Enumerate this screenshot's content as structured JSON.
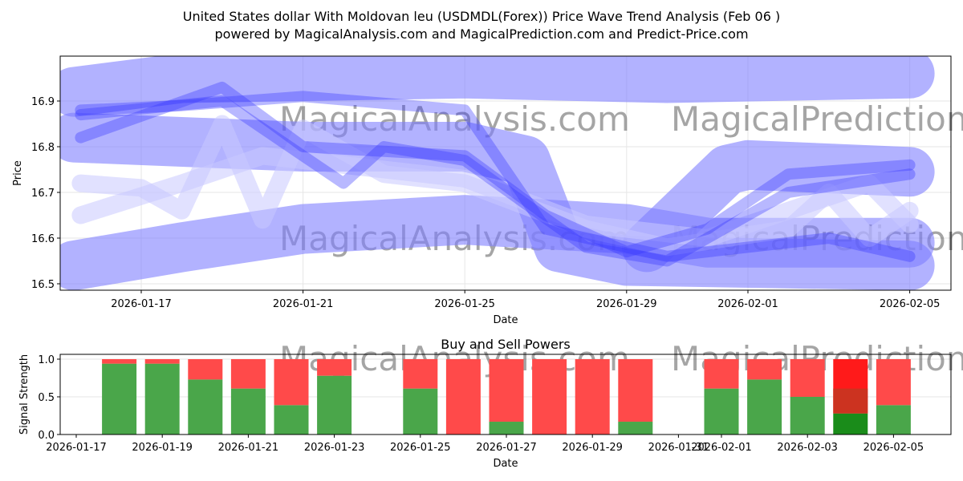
{
  "title_line1": "United States dollar With Moldovan leu (USDMDL(Forex)) Price Wave Trend Analysis (Feb 06 )",
  "title_line2": "powered by MagicalAnalysis.com and MagicalPrediction.com and Predict-Price.com",
  "watermarks": [
    "MagicalAnalysis.com",
    "MagicalPrediction.com"
  ],
  "chart_data": [
    {
      "type": "line",
      "title": "",
      "xlabel": "Date",
      "ylabel": "Price",
      "ylim": [
        16.485,
        16.995
      ],
      "xticks": [
        "2026-01-17",
        "2026-01-21",
        "2026-01-25",
        "2026-01-29",
        "2026-02-01",
        "2026-02-05"
      ],
      "yticks": [
        "16.5",
        "16.6",
        "16.7",
        "16.8",
        "16.9"
      ],
      "grid": true,
      "colors": {
        "band": "#7f7fff",
        "line": "#3333ff"
      },
      "series": [
        {
          "name": "band-top",
          "kind": "band",
          "points": [
            [
              "2026-01-15T08:00",
              16.92
            ],
            [
              "2026-01-18",
              16.95
            ],
            [
              "2026-01-25",
              16.96
            ],
            [
              "2026-01-30",
              16.95
            ],
            [
              "2026-02-05",
              16.96
            ]
          ]
        },
        {
          "name": "band-middle",
          "kind": "band",
          "points": [
            [
              "2026-01-15T08:00",
              16.82
            ],
            [
              "2026-01-21",
              16.8
            ],
            [
              "2026-01-25",
              16.8
            ],
            [
              "2026-01-26T12:00",
              16.77
            ],
            [
              "2026-01-27T08:00",
              16.58
            ],
            [
              "2026-01-29",
              16.55
            ],
            [
              "2026-02-05",
              16.54
            ]
          ]
        },
        {
          "name": "band-lower",
          "kind": "band",
          "points": [
            [
              "2026-01-15T08:00",
              16.54
            ],
            [
              "2026-01-18",
              16.58
            ],
            [
              "2026-01-21",
              16.62
            ],
            [
              "2026-01-25",
              16.64
            ],
            [
              "2026-01-29",
              16.62
            ],
            [
              "2026-01-31",
              16.59
            ],
            [
              "2026-02-05",
              16.59
            ]
          ]
        },
        {
          "name": "band-right",
          "kind": "band",
          "points": [
            [
              "2026-01-29T12:00",
              16.58
            ],
            [
              "2026-01-31T12:00",
              16.75
            ],
            [
              "2026-02-01",
              16.76
            ],
            [
              "2026-02-05",
              16.745
            ]
          ]
        },
        {
          "name": "wave-1",
          "kind": "line",
          "points": [
            [
              "2026-01-15T12:00",
              16.87
            ],
            [
              "2026-01-19",
              16.9
            ],
            [
              "2026-01-22",
              16.72
            ],
            [
              "2026-01-23",
              16.8
            ],
            [
              "2026-01-25",
              16.77
            ],
            [
              "2026-01-28",
              16.58
            ],
            [
              "2026-01-30",
              16.55
            ],
            [
              "2026-02-02",
              16.7
            ],
            [
              "2026-02-05",
              16.74
            ]
          ]
        },
        {
          "name": "wave-2",
          "kind": "line",
          "points": [
            [
              "2026-01-15T12:00",
              16.82
            ],
            [
              "2026-01-19",
              16.93
            ],
            [
              "2026-01-21",
              16.8
            ],
            [
              "2026-01-25",
              16.78
            ],
            [
              "2026-01-27",
              16.65
            ],
            [
              "2026-01-29",
              16.57
            ],
            [
              "2026-01-31",
              16.62
            ],
            [
              "2026-02-02",
              16.74
            ],
            [
              "2026-02-05",
              16.76
            ]
          ]
        },
        {
          "name": "wave-3",
          "kind": "line",
          "points": [
            [
              "2026-01-15T12:00",
              16.88
            ],
            [
              "2026-01-18",
              16.89
            ],
            [
              "2026-01-21",
              16.91
            ],
            [
              "2026-01-25",
              16.88
            ],
            [
              "2026-01-27",
              16.62
            ],
            [
              "2026-01-30",
              16.56
            ],
            [
              "2026-02-03",
              16.6
            ],
            [
              "2026-02-05",
              16.56
            ]
          ]
        },
        {
          "name": "wave-4",
          "kind": "faint",
          "points": [
            [
              "2026-01-15T12:00",
              16.72
            ],
            [
              "2026-01-17",
              16.71
            ],
            [
              "2026-01-18",
              16.66
            ],
            [
              "2026-01-19",
              16.85
            ],
            [
              "2026-01-20",
              16.64
            ],
            [
              "2026-01-21",
              16.84
            ],
            [
              "2026-01-23",
              16.74
            ],
            [
              "2026-01-25",
              16.72
            ],
            [
              "2026-01-28",
              16.62
            ],
            [
              "2026-01-30",
              16.58
            ],
            [
              "2026-02-02",
              16.62
            ],
            [
              "2026-02-03",
              16.7
            ],
            [
              "2026-02-04",
              16.6
            ],
            [
              "2026-02-05",
              16.66
            ]
          ]
        },
        {
          "name": "wave-5",
          "kind": "faint",
          "points": [
            [
              "2026-01-15T12:00",
              16.65
            ],
            [
              "2026-01-18",
              16.72
            ],
            [
              "2026-01-20",
              16.78
            ],
            [
              "2026-01-22",
              16.76
            ],
            [
              "2026-01-25",
              16.73
            ],
            [
              "2026-01-28",
              16.63
            ],
            [
              "2026-01-31",
              16.6
            ],
            [
              "2026-02-02",
              16.66
            ],
            [
              "2026-02-04",
              16.72
            ],
            [
              "2026-02-05",
              16.63
            ]
          ]
        }
      ]
    },
    {
      "type": "bar",
      "title": "Buy and Sell Powers",
      "xlabel": "Date",
      "ylabel": "Signal Strength",
      "ylim": [
        0,
        1.05
      ],
      "xticks": [
        "2026-01-17",
        "2026-01-19",
        "2026-01-21",
        "2026-01-23",
        "2026-01-25",
        "2026-01-27",
        "2026-01-29",
        "2026-01-31",
        "2026-02-01",
        "2026-02-03",
        "2026-02-05"
      ],
      "yticks": [
        "0.0",
        "0.5",
        "1.0"
      ],
      "colors": {
        "buy": "#4aa64a",
        "sell": "#ff4a4a",
        "buy_strong": "#1a8c1a",
        "sell_strong": "#ff1a1a",
        "overlap": "#cc3320"
      },
      "categories": [
        "2026-01-18",
        "2026-01-19",
        "2026-01-20",
        "2026-01-21",
        "2026-01-22",
        "2026-01-23",
        "2026-01-25",
        "2026-01-26",
        "2026-01-27",
        "2026-01-28",
        "2026-01-29",
        "2026-01-30",
        "2026-02-01",
        "2026-02-02",
        "2026-02-03",
        "2026-02-04",
        "2026-02-05"
      ],
      "series": [
        {
          "name": "Buy",
          "values": [
            0.94,
            0.94,
            0.73,
            0.61,
            0.39,
            0.78,
            0.61,
            0,
            0.17,
            0,
            0,
            0.17,
            0.61,
            0.73,
            0.5,
            0.28,
            0.39
          ]
        },
        {
          "name": "Sell",
          "values": [
            0.06,
            0.06,
            0.27,
            0.39,
            0.61,
            0.22,
            0.39,
            1,
            0.83,
            1,
            1,
            0.83,
            0.39,
            0.27,
            0.5,
            0.72,
            0.61
          ]
        }
      ],
      "highlight": {
        "date": "2026-02-04",
        "overlap_top": 0.61
      }
    }
  ]
}
